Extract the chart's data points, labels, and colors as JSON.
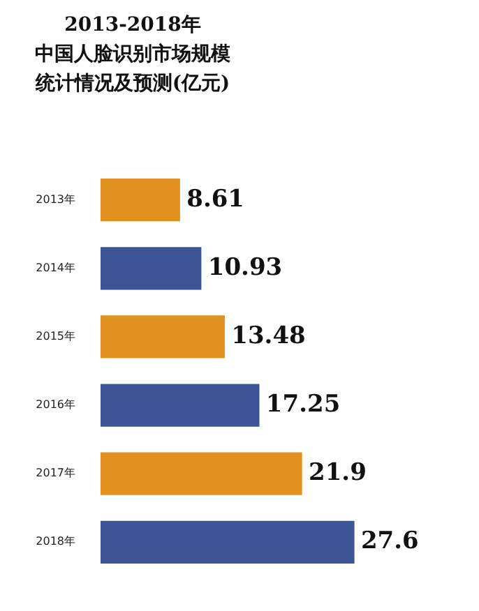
{
  "chart_data": {
    "type": "bar",
    "orientation": "horizontal",
    "title": "2013-2018年",
    "subtitle": "中国人脸识别市场规模统计情况及预测(亿元)",
    "categories": [
      "2013年",
      "2014年",
      "2015年",
      "2016年",
      "2017年",
      "2018年"
    ],
    "values": [
      8.61,
      10.93,
      13.48,
      17.25,
      21.9,
      27.6
    ],
    "colors": [
      "#e0911f",
      "#3d5597",
      "#e0911f",
      "#3d5597",
      "#e0911f",
      "#3d5597"
    ],
    "data_labels": true,
    "legend": false,
    "grid": false,
    "tick_labels": "y"
  }
}
